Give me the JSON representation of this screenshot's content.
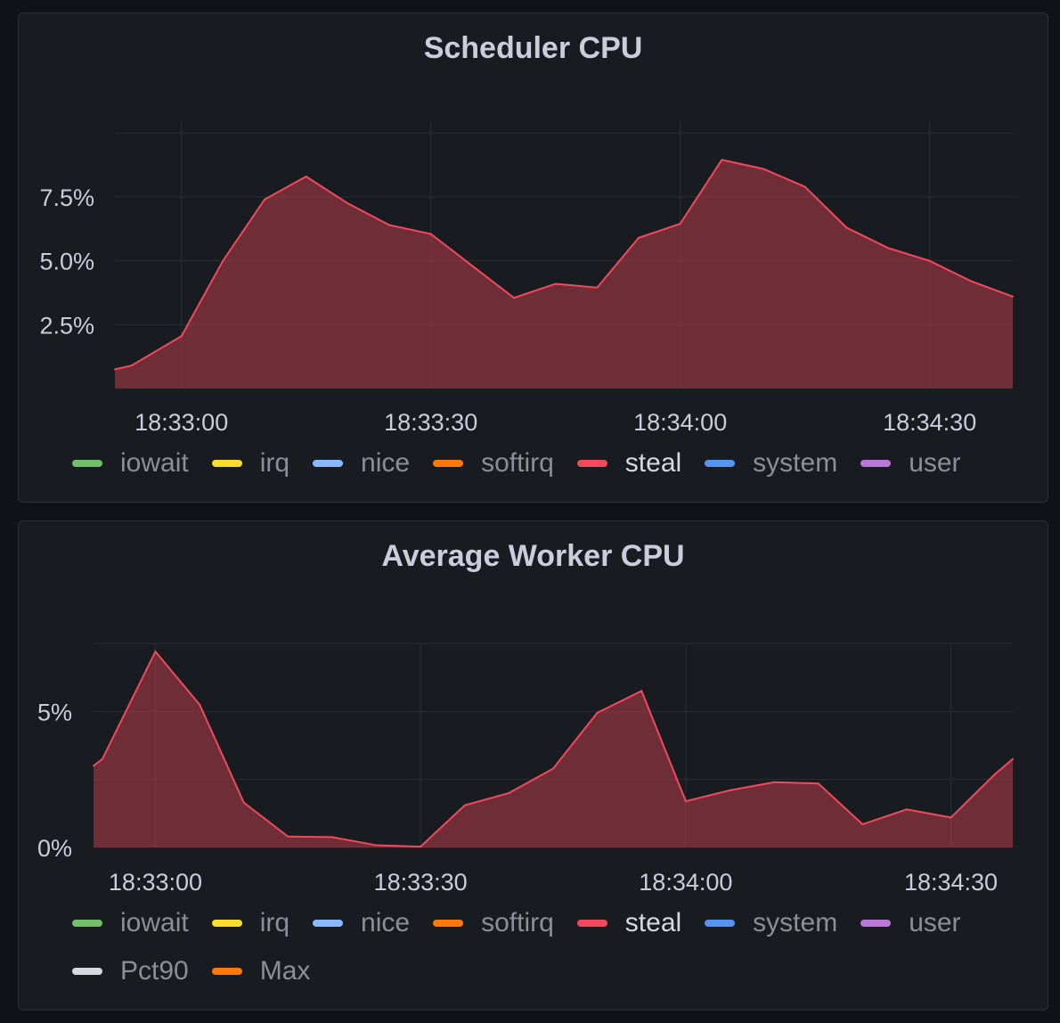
{
  "chart_data": [
    {
      "type": "area",
      "title": "Scheduler CPU",
      "x": [
        "18:32:52",
        "18:32:54",
        "18:33:00",
        "18:33:05",
        "18:33:10",
        "18:33:15",
        "18:33:20",
        "18:33:25",
        "18:33:30",
        "18:33:35",
        "18:33:40",
        "18:33:45",
        "18:33:50",
        "18:33:55",
        "18:34:00",
        "18:34:05",
        "18:34:10",
        "18:34:15",
        "18:34:20",
        "18:34:25",
        "18:34:30",
        "18:34:35",
        "18:34:40"
      ],
      "x_ticks": [
        "18:33:00",
        "18:33:30",
        "18:34:00",
        "18:34:30"
      ],
      "y_ticks": [
        "2.5%",
        "5.0%",
        "7.5%"
      ],
      "ylim": [
        0,
        10.5
      ],
      "series": [
        {
          "name": "steal",
          "color": "#f2495c",
          "values": [
            0.75,
            0.9,
            2.05,
            5.0,
            7.4,
            8.3,
            7.25,
            6.4,
            6.05,
            4.8,
            3.55,
            4.1,
            3.95,
            5.9,
            6.45,
            8.95,
            8.6,
            7.9,
            6.3,
            5.5,
            5.0,
            4.2,
            3.6
          ]
        }
      ],
      "legend": [
        {
          "label": "iowait",
          "color": "#73bf69"
        },
        {
          "label": "irq",
          "color": "#fade2a"
        },
        {
          "label": "nice",
          "color": "#8ab8ff"
        },
        {
          "label": "softirq",
          "color": "#ff780a"
        },
        {
          "label": "steal",
          "color": "#f2495c"
        },
        {
          "label": "system",
          "color": "#5794f2"
        },
        {
          "label": "user",
          "color": "#b877d9"
        }
      ],
      "grid": true,
      "legend_position": "bottom"
    },
    {
      "type": "area",
      "title": "Average Worker CPU",
      "x": [
        "18:32:53",
        "18:32:54",
        "18:33:00",
        "18:33:05",
        "18:33:10",
        "18:33:15",
        "18:33:20",
        "18:33:25",
        "18:33:30",
        "18:33:35",
        "18:33:40",
        "18:33:45",
        "18:33:50",
        "18:33:55",
        "18:34:00",
        "18:34:05",
        "18:34:10",
        "18:34:15",
        "18:34:20",
        "18:34:25",
        "18:34:30",
        "18:34:35"
      ],
      "x_ticks": [
        "18:33:00",
        "18:33:30",
        "18:34:00",
        "18:34:30"
      ],
      "y_ticks": [
        "0%",
        "5%"
      ],
      "ylim": [
        0,
        7.5
      ],
      "series": [
        {
          "name": "steal",
          "color": "#f2495c",
          "values": [
            3.0,
            3.25,
            7.2,
            5.25,
            1.65,
            0.4,
            0.38,
            0.08,
            0.03,
            1.55,
            2.0,
            2.9,
            4.95,
            5.75,
            1.7,
            2.1,
            2.4,
            2.35,
            0.85,
            1.4,
            1.1,
            2.7
          ]
        }
      ],
      "tail_value": 3.25,
      "legend": [
        {
          "label": "iowait",
          "color": "#73bf69"
        },
        {
          "label": "irq",
          "color": "#fade2a"
        },
        {
          "label": "nice",
          "color": "#8ab8ff"
        },
        {
          "label": "softirq",
          "color": "#ff780a"
        },
        {
          "label": "steal",
          "color": "#f2495c"
        },
        {
          "label": "system",
          "color": "#5794f2"
        },
        {
          "label": "user",
          "color": "#b877d9"
        },
        {
          "label": "Pct90",
          "color": "#d8d9e0"
        },
        {
          "label": "Max",
          "color": "#ff780a"
        }
      ],
      "grid": true,
      "legend_position": "bottom"
    }
  ]
}
